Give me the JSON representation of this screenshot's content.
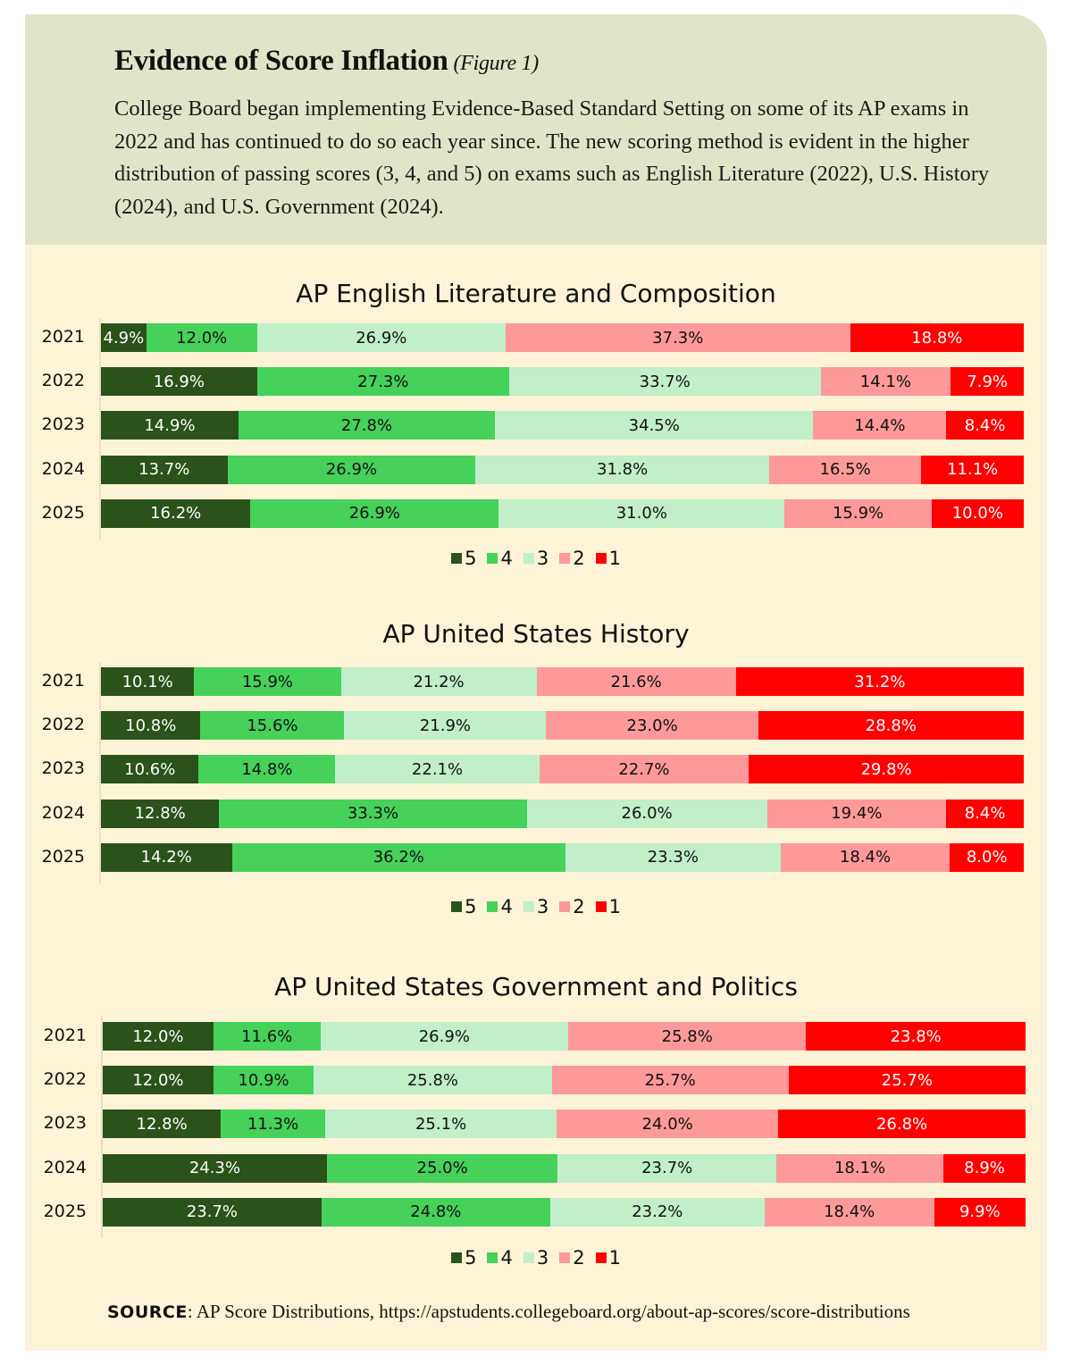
{
  "header": {
    "title": "Evidence of Score Inflation",
    "figure_label": "(Figure 1)",
    "intro": "College Board began implementing Evidence-Based Standard Setting on some of its AP exams in 2022 and has continued to do so each year since. The new scoring method is evident in the higher distribution of passing scores (3, 4, and 5) on exams such as English Literature (2022), U.S. History (2024), and U.S. Government (2024)."
  },
  "colors": {
    "score5": "#2b5219",
    "score4": "#46d15a",
    "score3": "#c0efc9",
    "score2": "#fd9999",
    "score1": "#fe0000",
    "header_bg": "#e2e4c9",
    "panel_bg": "#fdf3d6"
  },
  "legend": [
    "5",
    "4",
    "3",
    "2",
    "1"
  ],
  "chart_data": [
    {
      "type": "bar",
      "orientation": "horizontal-stacked-100",
      "title": "AP English Literature and Composition",
      "categories": [
        "2021",
        "2022",
        "2023",
        "2024",
        "2025"
      ],
      "series": [
        {
          "name": "5",
          "values": [
            4.9,
            16.9,
            14.9,
            13.7,
            16.2
          ]
        },
        {
          "name": "4",
          "values": [
            12.0,
            27.3,
            27.8,
            26.9,
            26.9
          ]
        },
        {
          "name": "3",
          "values": [
            26.9,
            33.7,
            34.5,
            31.8,
            31.0
          ]
        },
        {
          "name": "2",
          "values": [
            37.3,
            14.1,
            14.4,
            16.5,
            15.9
          ]
        },
        {
          "name": "1",
          "values": [
            18.8,
            7.9,
            8.4,
            11.1,
            10.0
          ]
        }
      ],
      "xlabel": "",
      "ylabel": "",
      "xlim": [
        0,
        100
      ],
      "legend_position": "bottom-center"
    },
    {
      "type": "bar",
      "orientation": "horizontal-stacked-100",
      "title": "AP United States History",
      "categories": [
        "2021",
        "2022",
        "2023",
        "2024",
        "2025"
      ],
      "series": [
        {
          "name": "5",
          "values": [
            10.1,
            10.8,
            10.6,
            12.8,
            14.2
          ]
        },
        {
          "name": "4",
          "values": [
            15.9,
            15.6,
            14.8,
            33.3,
            36.2
          ]
        },
        {
          "name": "3",
          "values": [
            21.2,
            21.9,
            22.1,
            26.0,
            23.3
          ]
        },
        {
          "name": "2",
          "values": [
            21.6,
            23.0,
            22.7,
            19.4,
            18.4
          ]
        },
        {
          "name": "1",
          "values": [
            31.2,
            28.8,
            29.8,
            8.4,
            8.0
          ]
        }
      ],
      "xlabel": "",
      "ylabel": "",
      "xlim": [
        0,
        100
      ],
      "legend_position": "bottom-center"
    },
    {
      "type": "bar",
      "orientation": "horizontal-stacked-100",
      "title": "AP United States Government and Politics",
      "categories": [
        "2021",
        "2022",
        "2023",
        "2024",
        "2025"
      ],
      "series": [
        {
          "name": "5",
          "values": [
            12.0,
            12.0,
            12.8,
            24.3,
            23.7
          ]
        },
        {
          "name": "4",
          "values": [
            11.6,
            10.9,
            11.3,
            25.0,
            24.8
          ]
        },
        {
          "name": "3",
          "values": [
            26.9,
            25.8,
            25.1,
            23.7,
            23.2
          ]
        },
        {
          "name": "2",
          "values": [
            25.8,
            25.7,
            24.0,
            18.1,
            18.4
          ]
        },
        {
          "name": "1",
          "values": [
            23.8,
            25.7,
            26.8,
            8.9,
            9.9
          ]
        }
      ],
      "xlabel": "",
      "ylabel": "",
      "xlim": [
        0,
        100
      ],
      "legend_position": "bottom-center"
    }
  ],
  "source": {
    "label": "SOURCE",
    "text": ": AP Score Distributions, https://apstudents.collegeboard.org/about-ap-scores/score-distributions"
  }
}
